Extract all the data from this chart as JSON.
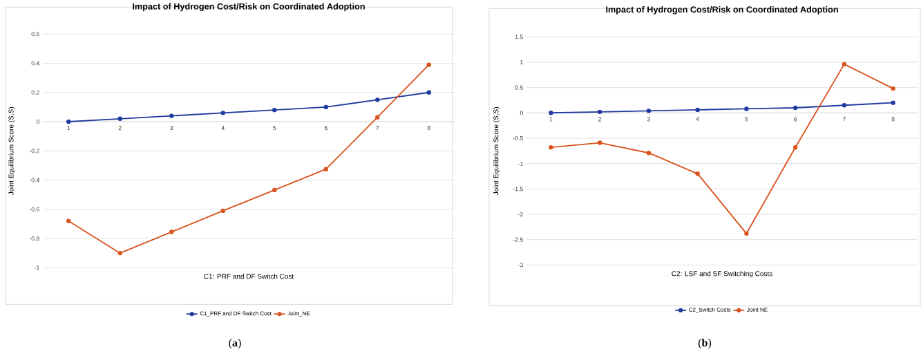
{
  "chart_data": [
    {
      "type": "line",
      "title": "Impact of Hydrogen Cost/Risk on Coordinated Adoption",
      "xlabel": "C1: PRF and  DF Switch Cost",
      "ylabel": "Joint Equilibrium Score (S,S)",
      "categories": [
        "1",
        "2",
        "3",
        "4",
        "5",
        "6",
        "7",
        "8"
      ],
      "series": [
        {
          "name": "C1_PRF and DF Switch Cost",
          "color": "#1f3a9e",
          "values": [
            0,
            0.02,
            0.04,
            0.06,
            0.08,
            0.1,
            0.15,
            0.2
          ]
        },
        {
          "name": "Joint_NE",
          "color": "#d9531e",
          "values": [
            -0.68,
            -0.9,
            -0.755,
            -0.61,
            -0.468,
            -0.325,
            0.03,
            0.39
          ]
        }
      ],
      "ylim": [
        -1,
        0.6
      ],
      "yticks": [
        -1,
        -0.8,
        -0.6,
        -0.4,
        -0.2,
        0,
        0.2,
        0.4,
        0.6
      ],
      "grid": "y",
      "legend": "bottom",
      "marker": "circle",
      "line_style": "solid",
      "annotations": [
        "(**a**)"
      ]
    },
    {
      "type": "line",
      "title": "Impact of Hydrogen Cost/Risk on Coordinated Adoption",
      "xlabel": "C2: LSF and SF Switching Costs",
      "ylabel": "Joint Equilibrium Score (S,S)",
      "categories": [
        "1",
        "2",
        "3",
        "4",
        "5",
        "6",
        "7",
        "8"
      ],
      "series": [
        {
          "name": "C2_Switch Costs",
          "color": "#1f3a9e",
          "values": [
            0,
            0.02,
            0.04,
            0.06,
            0.08,
            0.1,
            0.15,
            0.2
          ]
        },
        {
          "name": "Joint NE",
          "color": "#d9531e",
          "values": [
            -0.68,
            -0.59,
            -0.79,
            -1.2,
            -2.38,
            -0.68,
            0.96,
            0.48
          ]
        }
      ],
      "ylim": [
        -3,
        1.5
      ],
      "yticks": [
        -3,
        -2.5,
        -2,
        -1.5,
        -1,
        -0.5,
        0,
        0.5,
        1,
        1.5
      ],
      "grid": "y",
      "legend": "bottom",
      "marker": "circle",
      "line_style": "solid",
      "annotations": [
        "(**b**)"
      ]
    }
  ]
}
